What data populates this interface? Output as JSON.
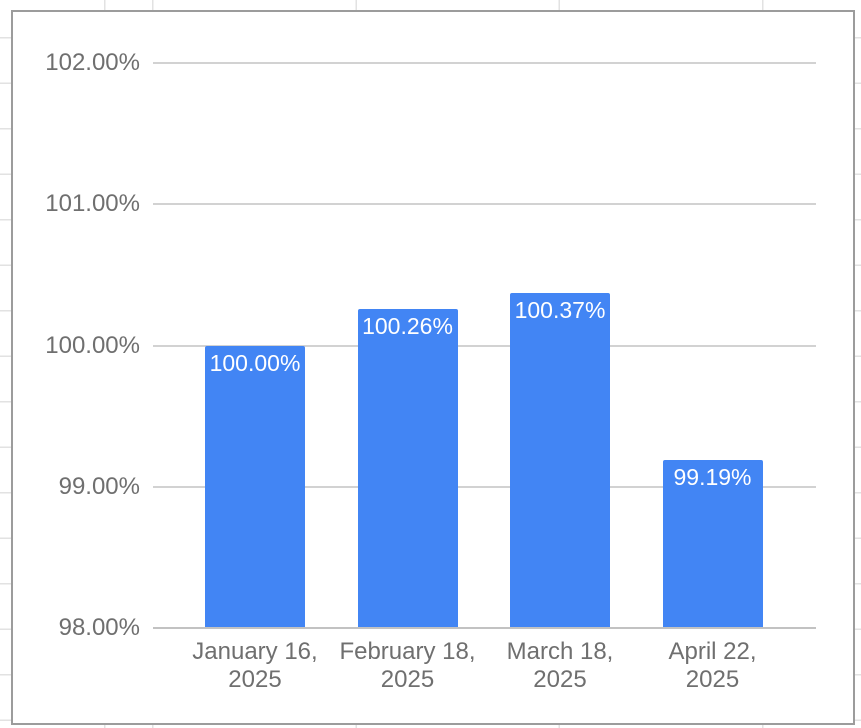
{
  "canvas": {
    "background_color": "#ffffff",
    "sheet_gridline_color": "#e2e2e2",
    "chart_border_color": "#9c9c9c"
  },
  "chart_data": {
    "type": "bar",
    "categories": [
      "January 16, 2025",
      "February 18, 2025",
      "March 18, 2025",
      "April 22, 2025"
    ],
    "category_lines": [
      [
        "January 16,",
        "2025"
      ],
      [
        "February 18,",
        "2025"
      ],
      [
        "March 18,",
        "2025"
      ],
      [
        "April 22,",
        "2025"
      ]
    ],
    "values": [
      100.0,
      100.26,
      100.37,
      99.19
    ],
    "data_labels": [
      "100.00%",
      "100.26%",
      "100.37%",
      "99.19%"
    ],
    "y_ticks": [
      {
        "value": 102,
        "label": "102.00%"
      },
      {
        "value": 101,
        "label": "101.00%"
      },
      {
        "value": 100,
        "label": "100.00%"
      },
      {
        "value": 99,
        "label": "99.00%"
      },
      {
        "value": 98,
        "label": "98.00%"
      }
    ],
    "ylim": [
      98,
      102
    ],
    "xlabel": "",
    "ylabel": "",
    "grid": true,
    "legend": "none",
    "bar_color": "#4285f4",
    "data_label_color": "#ffffff",
    "axis_text_color": "#6f6f6f",
    "gridline_color": "#d2d2d2"
  }
}
